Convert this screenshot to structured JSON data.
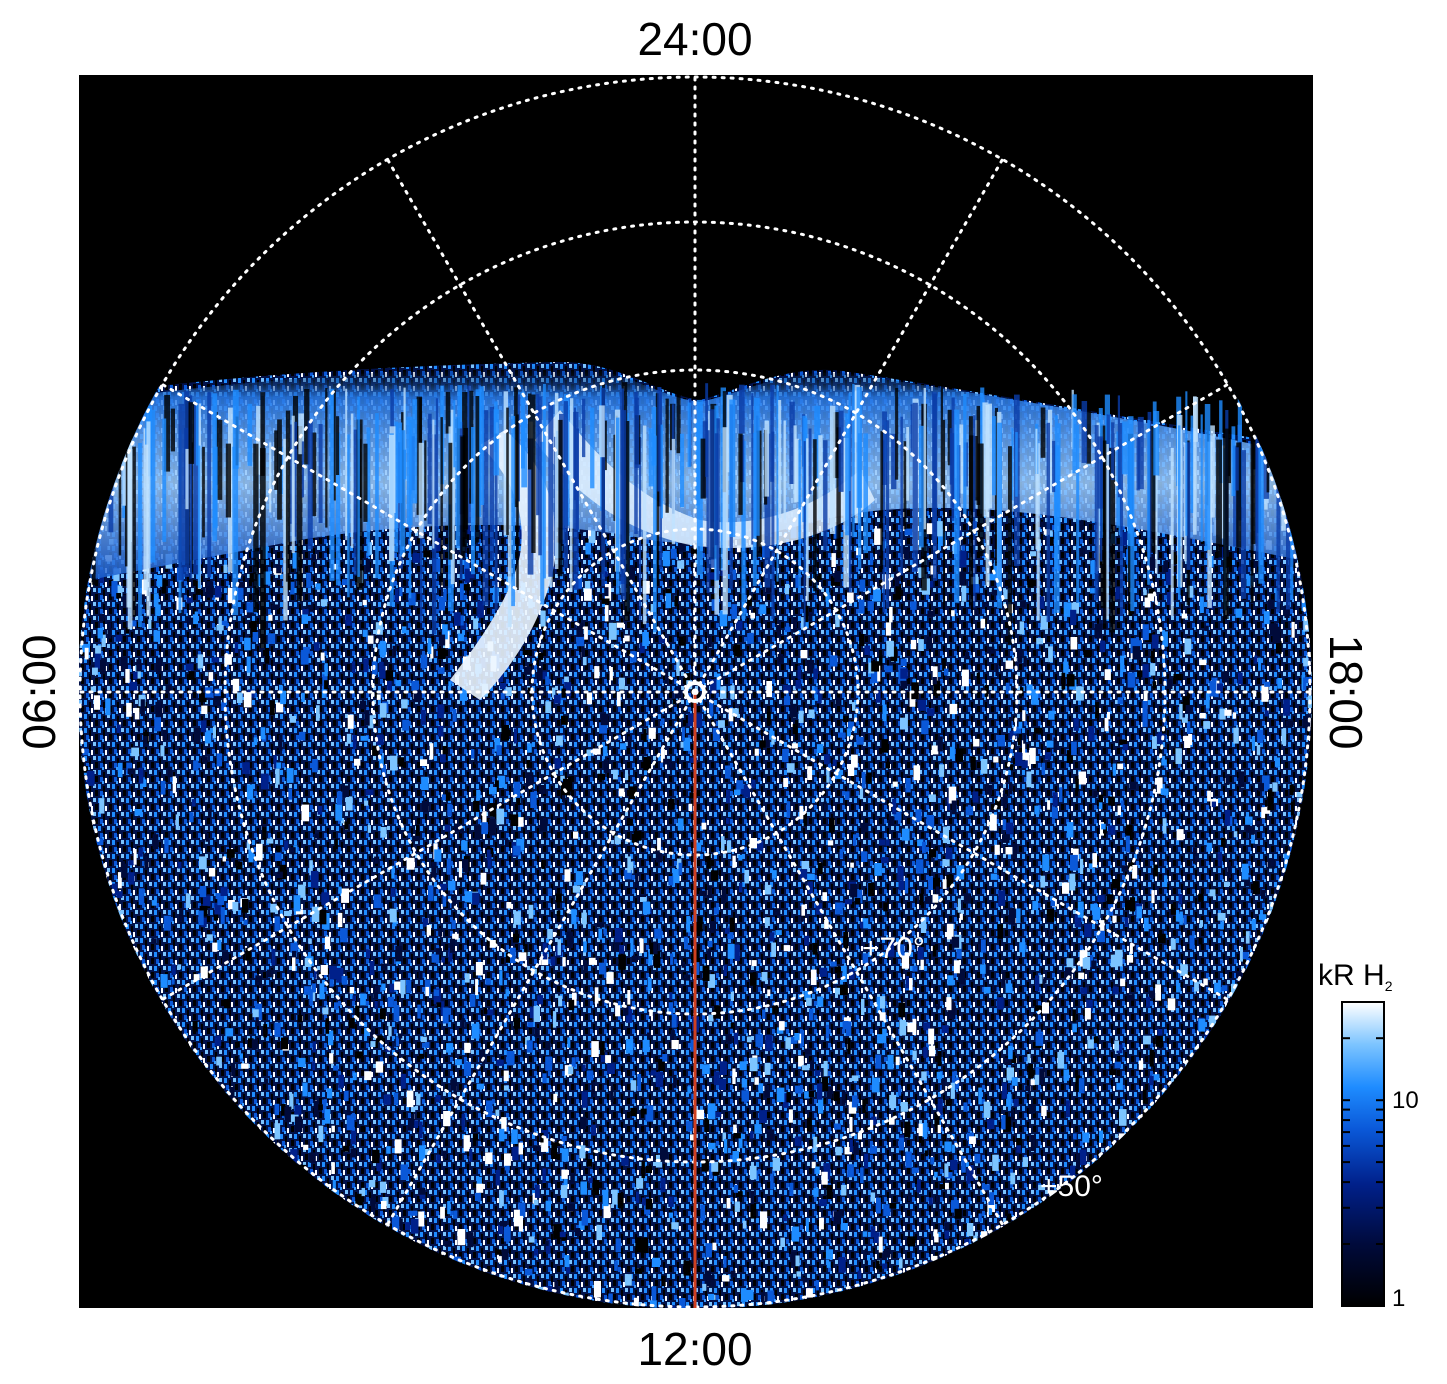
{
  "figure": {
    "local_time_labels": {
      "top": "24:00",
      "bottom": "12:00",
      "left": "06:00",
      "right": "18:00"
    },
    "latitude_labels": {
      "inner": "+70°",
      "outer": "+50°"
    },
    "colorbar": {
      "unit": "kR",
      "species": "H",
      "species_subscript": "2",
      "ticks": [
        "10",
        "1"
      ],
      "colormap": [
        "#000000",
        "#000a3a",
        "#00208a",
        "#0a58d8",
        "#1e8cff",
        "#7cc4ff",
        "#ffffff"
      ]
    },
    "colors": {
      "background": "#000000",
      "grid": "#ffffff",
      "meridian_line": "#d04020",
      "aurora_bright": "#e8f4ff",
      "aurora_mid": "#3a9cff",
      "aurora_dark": "#0a2c8a"
    }
  }
}
